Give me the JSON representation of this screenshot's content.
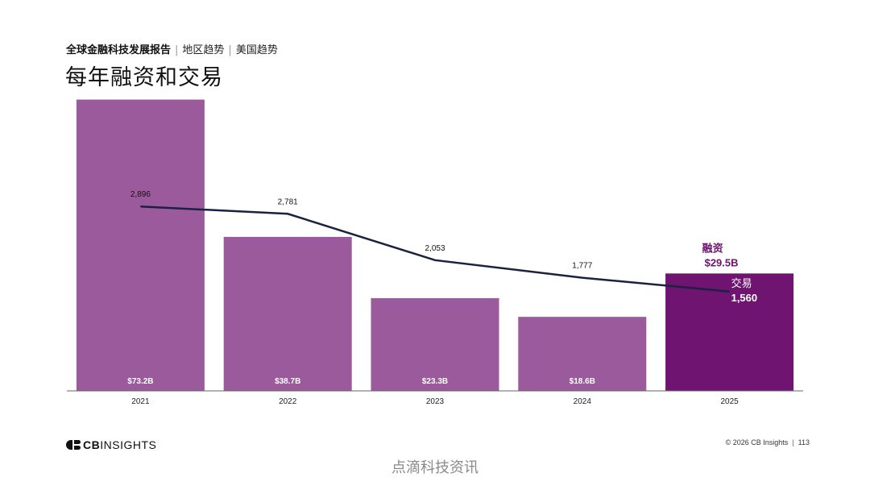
{
  "header": {
    "report": "全球金融科技发展报告",
    "section": "地区趋势",
    "subsection": "美国趋势",
    "title": "每年融资和交易"
  },
  "chart_data": {
    "type": "bar",
    "categories": [
      "2021",
      "2022",
      "2023",
      "2024",
      "2025"
    ],
    "series": [
      {
        "name": "融资",
        "kind": "bar",
        "values": [
          73.2,
          38.7,
          23.3,
          18.6,
          29.5
        ],
        "labels": [
          "$73.2B",
          "$38.7B",
          "$23.3B",
          "$18.6B",
          "$29.5B"
        ]
      },
      {
        "name": "交易",
        "kind": "line",
        "values": [
          2896,
          2781,
          2053,
          1777,
          1560
        ],
        "labels": [
          "2,896",
          "2,781",
          "2,053",
          "1,777",
          "1,560"
        ]
      }
    ],
    "bar_ylim": [
      0,
      80
    ],
    "line_ylim": [
      0,
      5000
    ],
    "highlight_category": "2025",
    "annotations": {
      "funding_label": "融资",
      "funding_value": "$29.5B",
      "deals_label": "交易",
      "deals_value": "1,560"
    },
    "colors": {
      "bar": "#9b5a9c",
      "bar_highlight": "#6f1470",
      "line": "#1a2240",
      "axis": "#666666",
      "accent_text": "#6f1470"
    }
  },
  "footer": {
    "logo_text_bold": "CB",
    "logo_text": "INSIGHTS",
    "copyright": "© 2026 CB Insights",
    "page_number": "113"
  },
  "watermark": "点滴科技资讯"
}
